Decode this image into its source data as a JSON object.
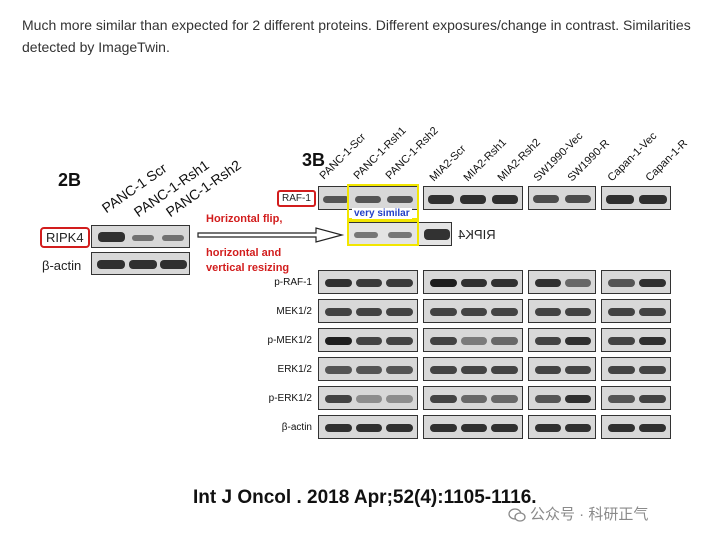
{
  "caption": "Much more similar than expected for 2 different proteins. Different exposures/change in contrast. Similarities detected by ImageTwin.",
  "panel_2b": {
    "title": "2B",
    "lanes": [
      "PANC-1 Scr",
      "PANC-1-Rsh1",
      "PANC-1-Rsh2"
    ],
    "rows": [
      "RIPK4",
      "β-actin"
    ]
  },
  "panel_3b": {
    "title": "3B",
    "lanes": [
      "PANC-1-Scr",
      "PANC-1-Rsh1",
      "PANC-1-Rsh2",
      "MIA2-Scr",
      "MIA2-Rsh1",
      "MIA2-Rsh2",
      "SW1990-Vec",
      "SW1990-R",
      "Capan-1-Vec",
      "Capan-1-R"
    ],
    "rows": [
      "RAF-1",
      "p-RAF-1",
      "MEK1/2",
      "p-MEK1/2",
      "ERK1/2",
      "p-ERK1/2",
      "β-actin"
    ],
    "mirror_label": "RIPK4"
  },
  "annotations": {
    "flip_note": "Horizontal flip,",
    "resize_note_1": "horizontal and",
    "resize_note_2": "vertical resizing",
    "similar_note": "very similar"
  },
  "citation": "Int J Oncol . 2018 Apr;52(4):1105-1116.",
  "watermark": "公众号 · 科研正气",
  "colors": {
    "highlight_red": "#d21d1d",
    "highlight_yellow": "#f2e600",
    "note_blue": "#2340c8"
  }
}
